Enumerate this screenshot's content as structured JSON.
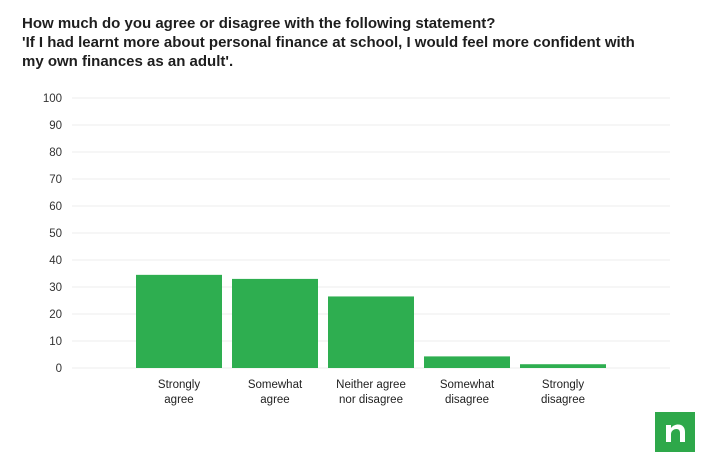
{
  "title_lines": [
    "How much do you agree or disagree with the following statement?",
    "'If I had learnt more about personal finance at school, I would feel more confident with",
    "my own finances as an adult'."
  ],
  "colors": {
    "bar": "#2eae50",
    "logo": "#2ea84a"
  },
  "logo": {
    "icon": "n-letter-logo-icon"
  },
  "chart_data": {
    "type": "bar",
    "title": "How much do you agree or disagree with the following statement? 'If I had learnt more about personal finance at school, I would feel more confident with my own finances as an adult'.",
    "categories": [
      [
        "Strongly",
        "agree"
      ],
      [
        "Somewhat",
        "agree"
      ],
      [
        "Neither agree",
        "nor disagree"
      ],
      [
        "Somewhat",
        "disagree"
      ],
      [
        "Strongly",
        "disagree"
      ]
    ],
    "values": [
      34.5,
      33,
      26.5,
      4.3,
      1.4
    ],
    "ylim": [
      0,
      100
    ],
    "yticks": [
      0,
      10,
      20,
      30,
      40,
      50,
      60,
      70,
      80,
      90,
      100
    ],
    "xlabel": "",
    "ylabel": "",
    "grid": true,
    "legend": "none"
  }
}
